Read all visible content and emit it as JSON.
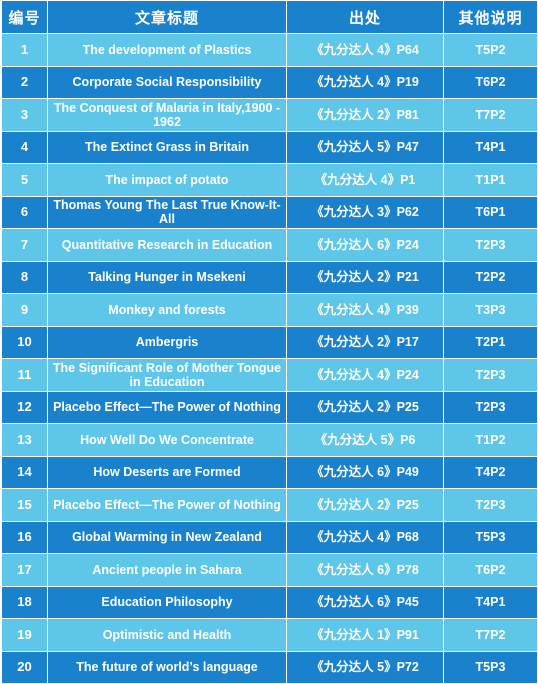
{
  "headers": [
    "编号",
    "文章标题",
    "出处",
    "其他说明"
  ],
  "rows": [
    {
      "num": "1",
      "title": "The development of Plastics",
      "source": "《九分达人 4》P64",
      "note": "T5P2"
    },
    {
      "num": "2",
      "title": "Corporate Social Responsibility",
      "source": "《九分达人 4》P19",
      "note": "T6P2"
    },
    {
      "num": "3",
      "title": "The Conquest of Malaria in Italy,1900 - 1962",
      "source": "《九分达人 2》P81",
      "note": "T7P2"
    },
    {
      "num": "4",
      "title": "The Extinct Grass in Britain",
      "source": "《九分达人 5》P47",
      "note": "T4P1"
    },
    {
      "num": "5",
      "title": "The impact of potato",
      "source": "《九分达人 4》P1",
      "note": "T1P1"
    },
    {
      "num": "6",
      "title": "Thomas Young The Last True Know-It-All",
      "source": "《九分达人 3》P62",
      "note": "T6P1"
    },
    {
      "num": "7",
      "title": "Quantitative Research in Education",
      "source": "《九分达人 6》P24",
      "note": "T2P3"
    },
    {
      "num": "8",
      "title": "Talking Hunger in Msekeni",
      "source": "《九分达人 2》P21",
      "note": "T2P2"
    },
    {
      "num": "9",
      "title": "Monkey and forests",
      "source": "《九分达人 4》P39",
      "note": "T3P3"
    },
    {
      "num": "10",
      "title": "Ambergris",
      "source": "《九分达人 2》P17",
      "note": "T2P1"
    },
    {
      "num": "11",
      "title": "The Significant Role of Mother Tongue in Education",
      "source": "《九分达人 4》P24",
      "note": "T2P3"
    },
    {
      "num": "12",
      "title": "Placebo Effect—The Power of Nothing",
      "source": "《九分达人 2》P25",
      "note": "T2P3"
    },
    {
      "num": "13",
      "title": "How Well Do We Concentrate",
      "source": "《九分达人 5》P6",
      "note": "T1P2"
    },
    {
      "num": "14",
      "title": "How Deserts are Formed",
      "source": "《九分达人 6》P49",
      "note": "T4P2"
    },
    {
      "num": "15",
      "title": "Placebo Effect—The Power of Nothing",
      "source": "《九分达人 2》P25",
      "note": "T2P3"
    },
    {
      "num": "16",
      "title": "Global Warming in New Zealand",
      "source": "《九分达人 4》P68",
      "note": "T5P3"
    },
    {
      "num": "17",
      "title": "Ancient people in Sahara",
      "source": "《九分达人 6》P78",
      "note": "T6P2"
    },
    {
      "num": "18",
      "title": "Education Philosophy",
      "source": "《九分达人 6》P45",
      "note": "T4P1"
    },
    {
      "num": "19",
      "title": "Optimistic and Health",
      "source": "《九分达人 1》P91",
      "note": "T7P2"
    },
    {
      "num": "20",
      "title": "The future of world’s language",
      "source": "《九分达人 5》P72",
      "note": "T5P3"
    }
  ],
  "colors": {
    "header": "#1a82cc",
    "row_light": "#5ec6e8",
    "row_dark": "#1a82cc",
    "text": "#ffffff",
    "border": "#ffffff"
  }
}
